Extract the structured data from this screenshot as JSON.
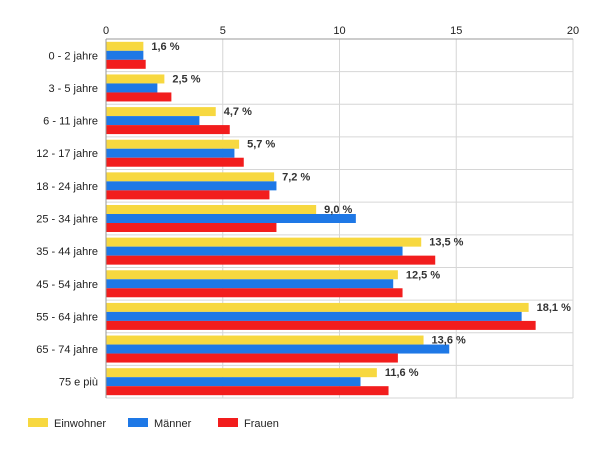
{
  "chart_data": {
    "type": "bar",
    "orientation": "horizontal",
    "categories": [
      "0 - 2 jahre",
      "3 - 5 jahre",
      "6 - 11 jahre",
      "12 - 17 jahre",
      "18 - 24 jahre",
      "25 - 34 jahre",
      "35 - 44 jahre",
      "45 - 54 jahre",
      "55 - 64 jahre",
      "65 - 74 jahre",
      "75 e più"
    ],
    "series": [
      {
        "name": "Einwohner",
        "color": "#f7d840",
        "values": [
          1.6,
          2.5,
          4.7,
          5.7,
          7.2,
          9.0,
          13.5,
          12.5,
          18.1,
          13.6,
          11.6
        ]
      },
      {
        "name": "Männer",
        "color": "#1e78e6",
        "values": [
          1.6,
          2.2,
          4.0,
          5.5,
          7.3,
          10.7,
          12.7,
          12.3,
          17.8,
          14.7,
          10.9
        ]
      },
      {
        "name": "Frauen",
        "color": "#f21d1d",
        "values": [
          1.7,
          2.8,
          5.3,
          5.9,
          7.0,
          7.3,
          14.1,
          12.7,
          18.4,
          12.5,
          12.1
        ]
      }
    ],
    "data_labels": [
      "1,6 %",
      "2,5 %",
      "4,7 %",
      "5,7 %",
      "7,2 %",
      "9,0 %",
      "13,5 %",
      "12,5 %",
      "18,1 %",
      "13,6 %",
      "11,6 %"
    ],
    "x_ticks": [
      "0",
      "5",
      "10",
      "15",
      "20"
    ],
    "xlim": [
      0,
      20
    ],
    "grid": true,
    "axis_position": "top",
    "legend_position": "bottom-left"
  }
}
